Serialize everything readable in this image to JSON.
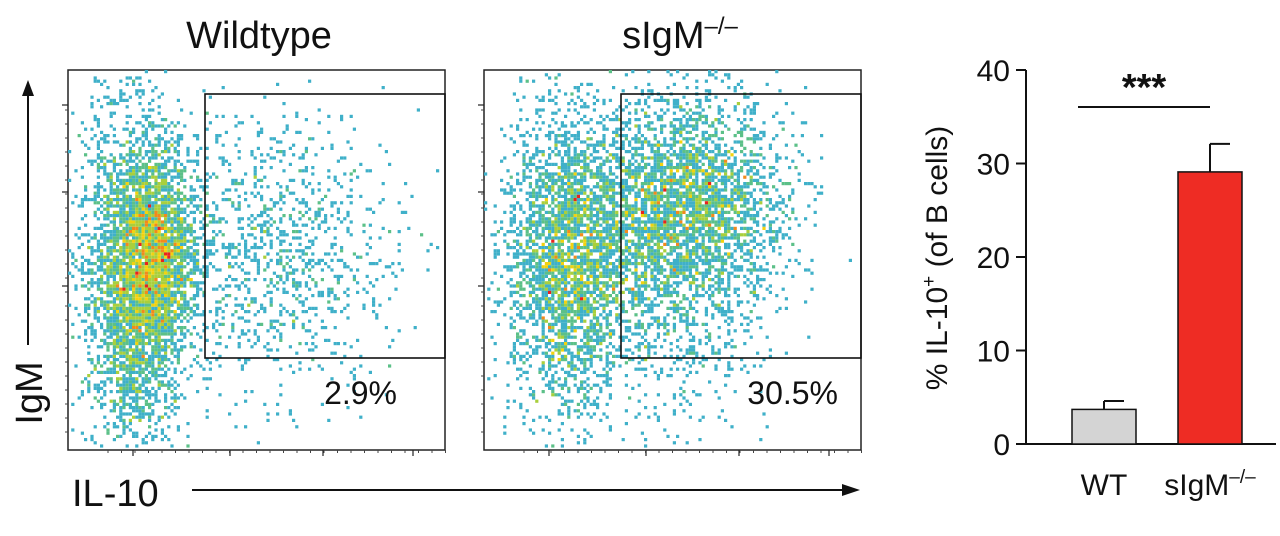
{
  "chart_data": [
    {
      "type": "scatter",
      "title": "Wildtype",
      "xlabel": "IL-10",
      "ylabel": "IgM",
      "gate_label": "2.9%",
      "gate_percent": 2.9,
      "density": [
        {
          "cx": 0.18,
          "cy": 0.55,
          "sx": 0.07,
          "sy": 0.22,
          "n": 3200
        },
        {
          "cx": 0.24,
          "cy": 0.48,
          "sx": 0.05,
          "sy": 0.12,
          "n": 1400
        },
        {
          "cx": 0.55,
          "cy": 0.48,
          "sx": 0.16,
          "sy": 0.18,
          "n": 1100
        }
      ]
    },
    {
      "type": "scatter",
      "title": "sIgM",
      "title_sup": "–/–",
      "xlabel": "IL-10",
      "ylabel": "IgM",
      "gate_label": "30.5%",
      "gate_percent": 30.5,
      "density": [
        {
          "cx": 0.22,
          "cy": 0.5,
          "sx": 0.08,
          "sy": 0.2,
          "n": 2600
        },
        {
          "cx": 0.55,
          "cy": 0.34,
          "sx": 0.13,
          "sy": 0.14,
          "n": 2600
        },
        {
          "cx": 0.45,
          "cy": 0.55,
          "sx": 0.15,
          "sy": 0.18,
          "n": 1200
        }
      ]
    },
    {
      "type": "bar",
      "categories": [
        "WT",
        "sIgM"
      ],
      "category_sup": [
        "",
        "–/–"
      ],
      "values": [
        3.7,
        29.1
      ],
      "errors": [
        0.9,
        3.0
      ],
      "colors": [
        "#d4d4d4",
        "#ee2c24"
      ],
      "ylabel": "% IL-10",
      "ylabel_sup": "+",
      "ylabel_tail": " (of B cells)",
      "ylim": [
        0,
        40
      ],
      "yticks": [
        0,
        10,
        20,
        30,
        40
      ],
      "significance": "***"
    }
  ]
}
